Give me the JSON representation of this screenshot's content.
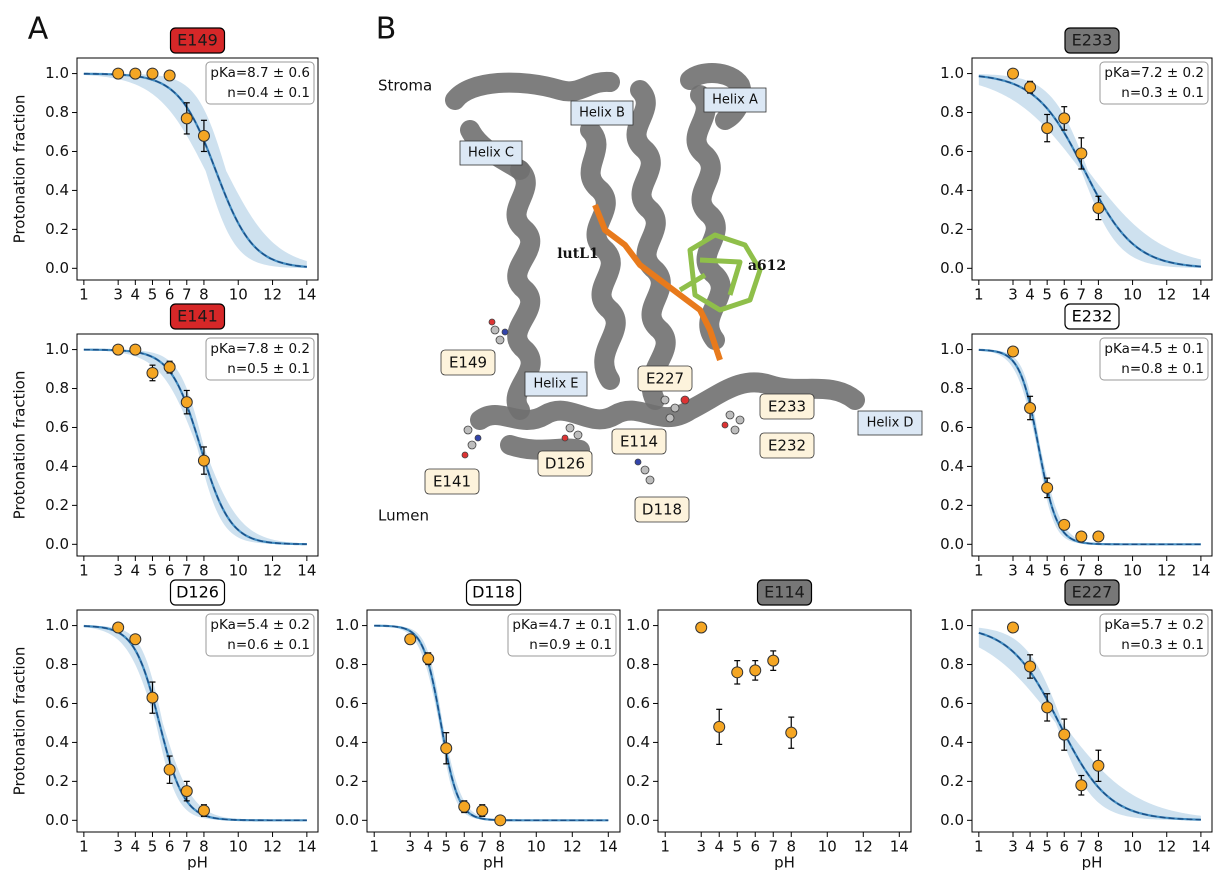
{
  "panel_labels": [
    "A",
    "B"
  ],
  "structure": {
    "regions": [
      "Stroma",
      "Lumen"
    ],
    "helices": [
      "Helix A",
      "Helix B",
      "Helix C",
      "Helix D",
      "Helix E"
    ],
    "pigments": [
      "lutL1",
      "a612"
    ],
    "residues": [
      "E149",
      "E141",
      "D126",
      "D118",
      "E114",
      "E227",
      "E233",
      "E232"
    ]
  },
  "chart_data": [
    {
      "type": "scatter",
      "title": "E149",
      "title_color": "#d62728",
      "ylabel": "Protonation fraction",
      "x": [
        3,
        4,
        5,
        6,
        7,
        8
      ],
      "values": [
        1.0,
        1.0,
        1.0,
        0.99,
        0.77,
        0.68
      ],
      "errors": [
        0,
        0,
        0,
        0,
        0.08,
        0.08
      ],
      "fit": {
        "pka": 8.7,
        "pka_err": 0.6,
        "n": 0.4,
        "n_err": 0.1,
        "label": [
          "pKa=8.7 ± 0.6",
          "n=0.4 ± 0.1"
        ]
      },
      "color": "#f5a623",
      "line_color": "#1f77b4",
      "xlim": [
        0.6,
        14.65
      ],
      "ylim": [
        -0.06,
        1.08
      ],
      "xticks": [
        1,
        3,
        4,
        5,
        6,
        7,
        8,
        10,
        12,
        14
      ],
      "yticks": [
        {
          "value": 0,
          "label": "0.0"
        },
        {
          "value": 0.2,
          "label": "0.2"
        },
        {
          "value": 0.4,
          "label": "0.4"
        },
        {
          "value": 0.6,
          "label": "0.6"
        },
        {
          "value": 0.8,
          "label": "0.8"
        },
        {
          "value": 1,
          "label": "1.0"
        }
      ]
    },
    {
      "type": "scatter",
      "title": "E233",
      "title_color": "#777777",
      "x": [
        3,
        4,
        5,
        6,
        7,
        8
      ],
      "values": [
        1.0,
        0.93,
        0.72,
        0.77,
        0.59,
        0.31
      ],
      "errors": [
        0,
        0.03,
        0.07,
        0.06,
        0.08,
        0.06
      ],
      "fit": {
        "pka": 7.2,
        "pka_err": 0.2,
        "n": 0.3,
        "n_err": 0.1,
        "label": [
          "pKa=7.2 ± 0.2",
          "n=0.3 ± 0.1"
        ]
      },
      "color": "#f5a623",
      "line_color": "#1f77b4",
      "xlim": [
        0.6,
        14.65
      ],
      "ylim": [
        -0.06,
        1.08
      ],
      "xticks": [
        1,
        3,
        4,
        5,
        6,
        7,
        8,
        10,
        12,
        14
      ],
      "yticks": [
        {
          "value": 0,
          "label": "0.0"
        },
        {
          "value": 0.2,
          "label": "0.2"
        },
        {
          "value": 0.4,
          "label": "0.4"
        },
        {
          "value": 0.6,
          "label": "0.6"
        },
        {
          "value": 0.8,
          "label": "0.8"
        },
        {
          "value": 1,
          "label": "1.0"
        }
      ]
    },
    {
      "type": "scatter",
      "title": "E141",
      "title_color": "#d62728",
      "ylabel": "Protonation fraction",
      "x": [
        3,
        4,
        5,
        6,
        7,
        8
      ],
      "values": [
        1.0,
        1.0,
        0.88,
        0.91,
        0.73,
        0.43
      ],
      "errors": [
        0,
        0,
        0.04,
        0.03,
        0.06,
        0.07
      ],
      "fit": {
        "pka": 7.8,
        "pka_err": 0.2,
        "n": 0.5,
        "n_err": 0.1,
        "label": [
          "pKa=7.8 ± 0.2",
          "n=0.5 ± 0.1"
        ]
      },
      "color": "#f5a623",
      "line_color": "#1f77b4",
      "xlim": [
        0.6,
        14.65
      ],
      "ylim": [
        -0.06,
        1.08
      ],
      "xticks": [
        1,
        3,
        4,
        5,
        6,
        7,
        8,
        10,
        12,
        14
      ],
      "yticks": [
        {
          "value": 0,
          "label": "0.0"
        },
        {
          "value": 0.2,
          "label": "0.2"
        },
        {
          "value": 0.4,
          "label": "0.4"
        },
        {
          "value": 0.6,
          "label": "0.6"
        },
        {
          "value": 0.8,
          "label": "0.8"
        },
        {
          "value": 1,
          "label": "1.0"
        }
      ]
    },
    {
      "type": "scatter",
      "title": "E232",
      "title_color": "#ffffff",
      "x": [
        3,
        4,
        5,
        6,
        7,
        8
      ],
      "values": [
        0.99,
        0.7,
        0.29,
        0.1,
        0.04,
        0.04
      ],
      "errors": [
        0,
        0.06,
        0.05,
        0.02,
        0.02,
        0.01
      ],
      "fit": {
        "pka": 4.5,
        "pka_err": 0.1,
        "n": 0.8,
        "n_err": 0.1,
        "label": [
          "pKa=4.5 ± 0.1",
          "n=0.8 ± 0.1"
        ]
      },
      "color": "#f5a623",
      "line_color": "#1f77b4",
      "xlim": [
        0.6,
        14.65
      ],
      "ylim": [
        -0.06,
        1.08
      ],
      "xticks": [
        1,
        3,
        4,
        5,
        6,
        7,
        8,
        10,
        12,
        14
      ],
      "yticks": [
        {
          "value": 0,
          "label": "0.0"
        },
        {
          "value": 0.2,
          "label": "0.2"
        },
        {
          "value": 0.4,
          "label": "0.4"
        },
        {
          "value": 0.6,
          "label": "0.6"
        },
        {
          "value": 0.8,
          "label": "0.8"
        },
        {
          "value": 1,
          "label": "1.0"
        }
      ]
    },
    {
      "type": "scatter",
      "title": "D126",
      "title_color": "#ffffff",
      "ylabel": "Protonation fraction",
      "xlabel": "pH",
      "x": [
        3,
        4,
        5,
        6,
        7,
        8
      ],
      "values": [
        0.99,
        0.93,
        0.63,
        0.26,
        0.15,
        0.05
      ],
      "errors": [
        0,
        0.02,
        0.08,
        0.07,
        0.05,
        0.03
      ],
      "fit": {
        "pka": 5.4,
        "pka_err": 0.2,
        "n": 0.6,
        "n_err": 0.1,
        "label": [
          "pKa=5.4 ± 0.2",
          "n=0.6 ± 0.1"
        ]
      },
      "color": "#f5a623",
      "line_color": "#1f77b4",
      "xlim": [
        0.6,
        14.65
      ],
      "ylim": [
        -0.06,
        1.08
      ],
      "xticks": [
        1,
        3,
        4,
        5,
        6,
        7,
        8,
        10,
        12,
        14
      ],
      "yticks": [
        {
          "value": 0,
          "label": "0.0"
        },
        {
          "value": 0.2,
          "label": "0.2"
        },
        {
          "value": 0.4,
          "label": "0.4"
        },
        {
          "value": 0.6,
          "label": "0.6"
        },
        {
          "value": 0.8,
          "label": "0.8"
        },
        {
          "value": 1,
          "label": "1.0"
        }
      ]
    },
    {
      "type": "scatter",
      "title": "D118",
      "title_color": "#ffffff",
      "xlabel": "pH",
      "x": [
        3,
        4,
        5,
        6,
        7,
        8
      ],
      "values": [
        0.93,
        0.83,
        0.37,
        0.07,
        0.05,
        0.0
      ],
      "errors": [
        0,
        0.03,
        0.08,
        0.03,
        0.03,
        0.01
      ],
      "fit": {
        "pka": 4.7,
        "pka_err": 0.1,
        "n": 0.9,
        "n_err": 0.1,
        "label": [
          "pKa=4.7 ± 0.1",
          "n=0.9 ± 0.1"
        ]
      },
      "color": "#f5a623",
      "line_color": "#1f77b4",
      "xlim": [
        0.6,
        14.65
      ],
      "ylim": [
        -0.06,
        1.08
      ],
      "xticks": [
        1,
        3,
        4,
        5,
        6,
        7,
        8,
        10,
        12,
        14
      ],
      "yticks": [
        {
          "value": 0,
          "label": "0.0"
        },
        {
          "value": 0.2,
          "label": "0.2"
        },
        {
          "value": 0.4,
          "label": "0.4"
        },
        {
          "value": 0.6,
          "label": "0.6"
        },
        {
          "value": 0.8,
          "label": "0.8"
        },
        {
          "value": 1,
          "label": "1.0"
        }
      ]
    },
    {
      "type": "scatter",
      "title": "E114",
      "title_color": "#777777",
      "xlabel": "pH",
      "x": [
        3,
        4,
        5,
        6,
        7,
        8
      ],
      "values": [
        0.99,
        0.48,
        0.76,
        0.77,
        0.82,
        0.45
      ],
      "errors": [
        0,
        0.09,
        0.06,
        0.05,
        0.05,
        0.08
      ],
      "color": "#f5a623",
      "xlim": [
        0.6,
        14.65
      ],
      "ylim": [
        -0.06,
        1.08
      ],
      "xticks": [
        1,
        3,
        4,
        5,
        6,
        7,
        8,
        10,
        12,
        14
      ],
      "yticks": [
        {
          "value": 0,
          "label": "0.0"
        },
        {
          "value": 0.2,
          "label": "0.2"
        },
        {
          "value": 0.4,
          "label": "0.4"
        },
        {
          "value": 0.6,
          "label": "0.6"
        },
        {
          "value": 0.8,
          "label": "0.8"
        },
        {
          "value": 1,
          "label": "1.0"
        }
      ]
    },
    {
      "type": "scatter",
      "title": "E227",
      "title_color": "#777777",
      "xlabel": "pH",
      "x": [
        3,
        4,
        5,
        6,
        7,
        8
      ],
      "values": [
        0.99,
        0.79,
        0.58,
        0.44,
        0.18,
        0.28
      ],
      "errors": [
        0,
        0.06,
        0.07,
        0.08,
        0.05,
        0.08
      ],
      "fit": {
        "pka": 5.7,
        "pka_err": 0.2,
        "n": 0.3,
        "n_err": 0.1,
        "label": [
          "pKa=5.7 ± 0.2",
          "n=0.3 ± 0.1"
        ]
      },
      "color": "#f5a623",
      "line_color": "#1f77b4",
      "xlim": [
        0.6,
        14.65
      ],
      "ylim": [
        -0.06,
        1.08
      ],
      "xticks": [
        1,
        3,
        4,
        5,
        6,
        7,
        8,
        10,
        12,
        14
      ],
      "yticks": [
        {
          "value": 0,
          "label": "0.0"
        },
        {
          "value": 0.2,
          "label": "0.2"
        },
        {
          "value": 0.4,
          "label": "0.4"
        },
        {
          "value": 0.6,
          "label": "0.6"
        },
        {
          "value": 0.8,
          "label": "0.8"
        },
        {
          "value": 1,
          "label": "1.0"
        }
      ]
    }
  ]
}
